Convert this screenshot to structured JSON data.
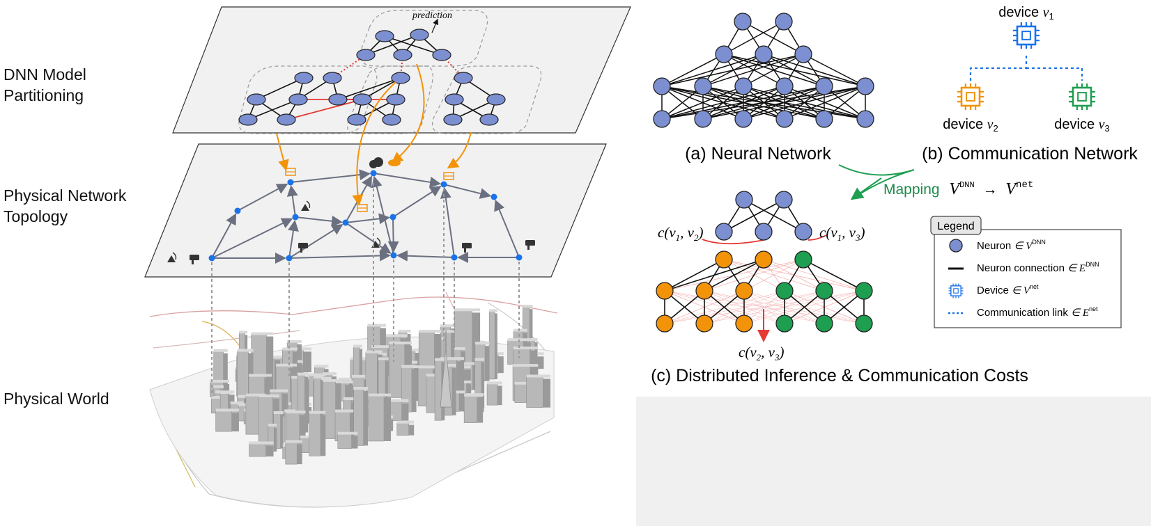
{
  "layers": {
    "dnn_partitioning": "DNN Model\nPartitioning",
    "physical_topology": "Physical Network\nTopology",
    "physical_world": "Physical World"
  },
  "annotations": {
    "prediction": "prediction"
  },
  "panels": {
    "a": "(a) Neural Network",
    "b": "(b) Communication Network",
    "c": "(c) Distributed Inference & Communication Costs"
  },
  "devices": {
    "v1": {
      "name": "device",
      "sym": "v",
      "sub": "1",
      "color": "#1a73e8"
    },
    "v2": {
      "name": "device",
      "sym": "v",
      "sub": "2",
      "color": "#f2930a"
    },
    "v3": {
      "name": "device",
      "sym": "v",
      "sub": "3",
      "color": "#1e9e50"
    }
  },
  "mapping": {
    "label": "Mapping",
    "from": "V",
    "from_sup": "DNN",
    "arrow": "→",
    "to": "V",
    "to_sup": "net",
    "color": "#1e8a4a"
  },
  "costs": {
    "c12": {
      "pre": "c(v",
      "a": "1",
      "mid": ", v",
      "b": "2",
      "post": ")"
    },
    "c13": {
      "pre": "c(v",
      "a": "1",
      "mid": ", v",
      "b": "3",
      "post": ")"
    },
    "c23": {
      "pre": "c(v",
      "a": "2",
      "mid": ", v",
      "b": "3",
      "post": ")"
    }
  },
  "legend": {
    "title": "Legend",
    "items": [
      {
        "text": "Neuron",
        "sym": "∈ V",
        "sup": "DNN"
      },
      {
        "text": "Neuron connection",
        "sym": "∈ E",
        "sup": "DNN"
      },
      {
        "text": "Device",
        "sym": "∈ V",
        "sup": "net"
      },
      {
        "text": "Communication link",
        "sym": "∈ E",
        "sup": "net"
      }
    ]
  },
  "colors": {
    "neuron": "#7b8fd1",
    "orange": "#f2930a",
    "green": "#1e9e50",
    "blue": "#1a73e8",
    "red": "#e53935",
    "link": "#6b7080",
    "plane": "#f1f1f1"
  }
}
